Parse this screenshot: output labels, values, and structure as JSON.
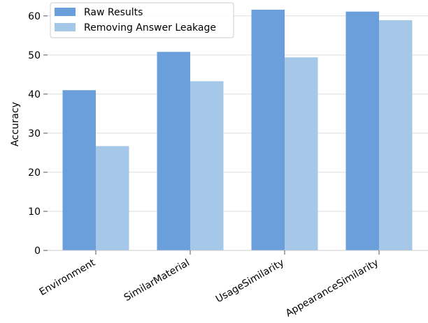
{
  "chart_data": {
    "type": "bar",
    "categories": [
      "Environment",
      "SimilarMaterial",
      "UsageSimilarity",
      "AppearanceSimilarity"
    ],
    "series": [
      {
        "name": "Raw Results",
        "values": [
          41.0,
          50.8,
          61.6,
          61.1
        ],
        "color": "#6a9fdc"
      },
      {
        "name": "Removing Answer Leakage",
        "values": [
          26.7,
          43.3,
          49.4,
          58.9
        ],
        "color": "#a6c8e8"
      }
    ],
    "xlabel": "",
    "ylabel": "Accuracy",
    "ylim": [
      0,
      63
    ],
    "yticks": [
      0,
      10,
      20,
      30,
      40,
      50,
      60
    ],
    "grid": "horizontal",
    "legend_position": "top-left"
  }
}
